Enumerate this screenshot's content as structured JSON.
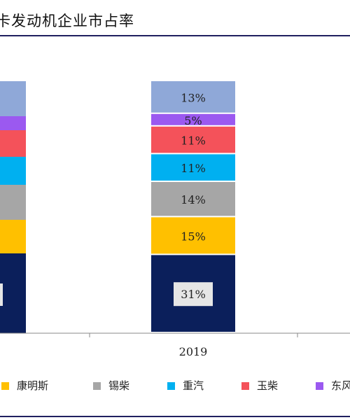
{
  "page": {
    "title": "卡发动机企业市占率"
  },
  "chart_data": {
    "type": "bar",
    "stacked": true,
    "categories": [
      "",
      "2019"
    ],
    "ylim": [
      0,
      100
    ],
    "series": [
      {
        "name": "",
        "color": "#0b1f5b",
        "values": [
          null,
          31
        ]
      },
      {
        "name": "康明斯",
        "color": "#ffc000",
        "values": [
          null,
          15
        ]
      },
      {
        "name": "锡柴",
        "color": "#a6a6a6",
        "values": [
          null,
          14
        ]
      },
      {
        "name": "重汽",
        "color": "#00b0f0",
        "values": [
          null,
          11
        ]
      },
      {
        "name": "玉柴",
        "color": "#f4525a",
        "values": [
          null,
          11
        ]
      },
      {
        "name": "东风",
        "color": "#9b59f0",
        "values": [
          null,
          5
        ]
      },
      {
        "name": "",
        "color": "#8fa8d8",
        "values": [
          null,
          13
        ]
      }
    ],
    "labels": {
      "2019": [
        "31%",
        "15%",
        "14%",
        "11%",
        "11%",
        "5%",
        "13%"
      ]
    },
    "legend_position": "bottom"
  },
  "legend": {
    "items": [
      {
        "label": "康明斯",
        "color": "#ffc000"
      },
      {
        "label": "锡柴",
        "color": "#a6a6a6"
      },
      {
        "label": "重汽",
        "color": "#00b0f0"
      },
      {
        "label": "玉柴",
        "color": "#f4525a"
      },
      {
        "label": "东风",
        "color": "#9b59f0"
      }
    ]
  }
}
